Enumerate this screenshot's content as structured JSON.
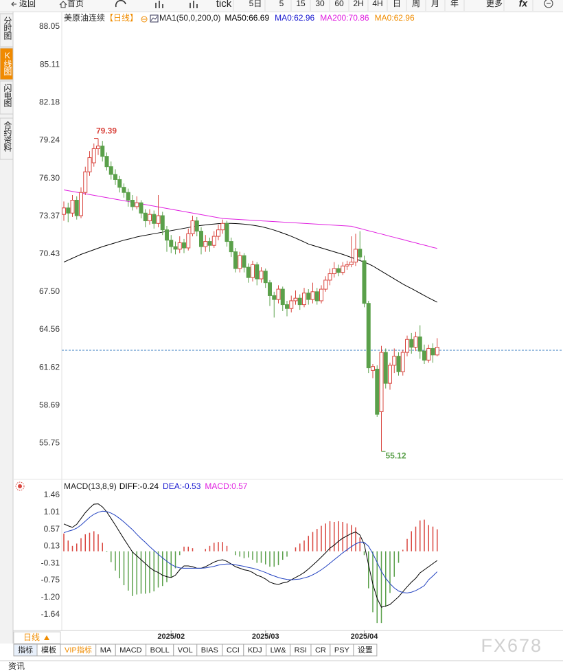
{
  "toolbar": [
    "返回",
    "首页",
    "tick",
    "5日",
    "5",
    "15",
    "30",
    "60",
    "2H",
    "4H",
    "日",
    "周",
    "月",
    "年",
    "更多",
    "fx"
  ],
  "sidebar": [
    "分时图",
    "K线图",
    "闪电图",
    "合约资料"
  ],
  "period_selector": "日线",
  "indicator_tabs": [
    "指标",
    "模板",
    "VIP指标",
    "MA",
    "MACD",
    "BOLL",
    "VOL",
    "BIAS",
    "CCI",
    "KDJ",
    "LW&",
    "RSI",
    "CR",
    "PSY",
    "设置"
  ],
  "footer": "资讯",
  "watermark": "FX678",
  "chart_data": [
    {
      "type": "candlestick",
      "title": "美原油连续",
      "period": "【日线】",
      "indicator": "MA1(50,0,200,0)",
      "legend": [
        {
          "text": "MA50:66.69",
          "color": "#000000"
        },
        {
          "text": "MA0:62.96",
          "color": "#1a1ad0"
        },
        {
          "text": "MA200:70.86",
          "color": "#e020e0"
        },
        {
          "text": "MA0:62.96",
          "color": "#f08c00"
        }
      ],
      "categories": [
        null,
        null,
        null,
        null,
        null,
        null,
        null,
        null,
        null,
        null,
        null,
        null,
        null,
        null,
        null,
        null,
        null,
        null,
        null,
        null,
        null,
        null,
        null,
        null,
        null,
        "2025/02",
        null,
        null,
        null,
        null,
        null,
        null,
        null,
        null,
        null,
        null,
        null,
        null,
        null,
        null,
        null,
        null,
        null,
        null,
        null,
        null,
        null,
        "2025/03",
        null,
        null,
        null,
        null,
        null,
        null,
        null,
        null,
        null,
        null,
        null,
        null,
        null,
        null,
        null,
        null,
        null,
        null,
        null,
        null,
        null,
        null,
        "2025/04",
        null,
        null,
        null,
        null,
        null,
        null,
        null,
        null,
        null,
        null,
        null,
        null,
        null,
        null,
        null,
        null,
        null
      ],
      "ohlc": [
        [
          73.5,
          74.5,
          73.0,
          74.0
        ],
        [
          74.0,
          74.4,
          72.9,
          73.6
        ],
        [
          73.6,
          75.0,
          73.3,
          74.6
        ],
        [
          74.6,
          74.9,
          73.1,
          73.4
        ],
        [
          73.4,
          75.6,
          73.2,
          75.2
        ],
        [
          75.2,
          77.2,
          75.0,
          76.8
        ],
        [
          76.8,
          78.4,
          76.5,
          77.9
        ],
        [
          77.5,
          79.0,
          77.2,
          78.6
        ],
        [
          78.6,
          79.39,
          78.1,
          78.8
        ],
        [
          78.8,
          79.2,
          77.6,
          78.0
        ],
        [
          78.0,
          78.3,
          76.9,
          77.2
        ],
        [
          77.2,
          77.6,
          76.2,
          76.6
        ],
        [
          76.6,
          77.0,
          75.8,
          76.2
        ],
        [
          76.2,
          76.5,
          75.2,
          75.6
        ],
        [
          75.6,
          75.9,
          74.8,
          75.2
        ],
        [
          75.2,
          75.5,
          74.1,
          74.6
        ],
        [
          74.6,
          75.0,
          73.8,
          74.1
        ],
        [
          74.1,
          74.9,
          73.9,
          74.4
        ],
        [
          74.4,
          74.6,
          73.2,
          73.6
        ],
        [
          73.6,
          73.9,
          72.5,
          73.0
        ],
        [
          73.0,
          73.9,
          72.7,
          73.5
        ],
        [
          73.5,
          73.8,
          72.4,
          72.8
        ],
        [
          72.8,
          75.0,
          72.5,
          73.4
        ],
        [
          73.4,
          73.7,
          71.9,
          72.3
        ],
        [
          72.3,
          72.6,
          70.6,
          71.5
        ],
        [
          71.5,
          71.9,
          70.5,
          71.0
        ],
        [
          71.0,
          71.4,
          70.4,
          70.8
        ],
        [
          70.8,
          71.8,
          70.5,
          71.3
        ],
        [
          71.3,
          71.6,
          70.5,
          70.9
        ],
        [
          70.9,
          72.4,
          70.7,
          72.0
        ],
        [
          72.0,
          73.4,
          71.8,
          73.0
        ],
        [
          73.0,
          73.3,
          71.8,
          72.2
        ],
        [
          72.2,
          72.5,
          70.4,
          71.0
        ],
        [
          71.0,
          71.9,
          70.6,
          71.4
        ],
        [
          71.4,
          71.7,
          70.6,
          71.1
        ],
        [
          71.1,
          72.2,
          70.9,
          71.8
        ],
        [
          71.8,
          72.7,
          71.5,
          72.3
        ],
        [
          72.3,
          73.1,
          72.0,
          72.8
        ],
        [
          72.8,
          73.0,
          71.0,
          71.4
        ],
        [
          71.4,
          71.7,
          70.2,
          70.6
        ],
        [
          70.6,
          70.9,
          69.0,
          69.3
        ],
        [
          69.3,
          70.6,
          69.0,
          70.3
        ],
        [
          70.3,
          70.5,
          69.0,
          69.4
        ],
        [
          69.4,
          69.7,
          68.2,
          68.6
        ],
        [
          68.6,
          69.9,
          68.3,
          69.6
        ],
        [
          69.6,
          69.8,
          68.0,
          68.5
        ],
        [
          68.5,
          69.4,
          68.2,
          69.1
        ],
        [
          69.1,
          69.3,
          67.8,
          68.2
        ],
        [
          68.2,
          68.4,
          66.4,
          67.2
        ],
        [
          67.2,
          67.5,
          65.5,
          66.9
        ],
        [
          66.9,
          68.0,
          66.6,
          67.7
        ],
        [
          67.7,
          67.9,
          66.0,
          66.5
        ],
        [
          66.5,
          66.8,
          65.6,
          66.2
        ],
        [
          66.2,
          67.2,
          65.9,
          66.8
        ],
        [
          66.8,
          67.6,
          66.5,
          67.0
        ],
        [
          67.0,
          67.3,
          66.1,
          66.5
        ],
        [
          66.5,
          67.8,
          66.3,
          67.4
        ],
        [
          67.4,
          67.7,
          66.5,
          66.9
        ],
        [
          66.9,
          68.2,
          66.6,
          67.5
        ],
        [
          67.5,
          67.8,
          66.5,
          66.8
        ],
        [
          66.8,
          68.0,
          66.6,
          67.7
        ],
        [
          67.7,
          68.7,
          67.5,
          68.4
        ],
        [
          68.4,
          69.3,
          68.0,
          68.9
        ],
        [
          68.9,
          69.8,
          68.6,
          69.3
        ],
        [
          69.3,
          69.6,
          68.7,
          69.0
        ],
        [
          69.0,
          69.8,
          68.8,
          69.5
        ],
        [
          69.5,
          69.9,
          69.2,
          69.6
        ],
        [
          69.6,
          71.8,
          69.4,
          69.8
        ],
        [
          69.8,
          72.0,
          69.5,
          70.8
        ],
        [
          70.8,
          72.2,
          69.9,
          70.2
        ],
        [
          69.9,
          70.3,
          66.3,
          66.6
        ],
        [
          66.6,
          66.8,
          61.2,
          61.6
        ],
        [
          61.4,
          61.9,
          60.8,
          61.7
        ],
        [
          61.5,
          61.8,
          57.8,
          58.0
        ],
        [
          58.2,
          63.3,
          55.12,
          62.8
        ],
        [
          62.8,
          63.1,
          60.0,
          60.4
        ],
        [
          60.4,
          62.0,
          59.9,
          61.8
        ],
        [
          61.8,
          63.1,
          61.2,
          62.5
        ],
        [
          62.5,
          62.8,
          61.0,
          61.3
        ],
        [
          61.3,
          63.0,
          61.0,
          62.8
        ],
        [
          62.8,
          64.1,
          62.5,
          63.8
        ],
        [
          63.8,
          64.3,
          62.7,
          63.2
        ],
        [
          63.2,
          64.4,
          62.9,
          64.0
        ],
        [
          64.0,
          64.9,
          62.3,
          62.9
        ],
        [
          62.9,
          63.4,
          61.9,
          62.2
        ],
        [
          62.2,
          63.4,
          62.0,
          63.1
        ],
        [
          63.1,
          63.5,
          62.0,
          62.6
        ],
        [
          62.6,
          63.9,
          62.5,
          63.2
        ]
      ],
      "up_color": "#d9453e",
      "down_color": "#5aa04a",
      "series": [
        {
          "color": "#000000",
          "values": [
            69.8,
            69.95,
            70.1,
            70.25,
            70.4,
            70.52,
            70.64,
            70.76,
            70.88,
            71.0,
            71.1,
            71.2,
            71.3,
            71.4,
            71.5,
            71.58,
            71.66,
            71.75,
            71.82,
            71.88,
            71.94,
            72.0,
            72.06,
            72.12,
            72.18,
            72.24,
            72.3,
            72.36,
            72.42,
            72.48,
            72.55,
            72.6,
            72.64,
            72.68,
            72.72,
            72.75,
            72.78,
            72.79,
            72.8,
            72.8,
            72.79,
            72.77,
            72.74,
            72.7,
            72.66,
            72.61,
            72.55,
            72.47,
            72.38,
            72.28,
            72.17,
            72.05,
            71.93,
            71.8,
            71.66,
            71.51,
            71.36,
            71.2,
            71.1,
            71.0,
            70.9,
            70.8,
            70.7,
            70.6,
            70.5,
            70.4,
            70.28,
            70.16,
            70.04,
            69.92,
            69.8,
            69.66,
            69.5,
            69.3,
            69.1,
            68.9,
            68.7,
            68.5,
            68.3,
            68.1,
            67.92,
            67.75,
            67.57,
            67.39,
            67.21,
            67.03,
            66.86,
            66.69
          ]
        },
        {
          "color": "#e020e0",
          "values": [
            75.4,
            75.34,
            75.28,
            75.22,
            75.16,
            75.1,
            75.04,
            74.98,
            74.92,
            74.86,
            74.8,
            74.74,
            74.68,
            74.62,
            74.56,
            74.5,
            74.44,
            74.38,
            74.32,
            74.26,
            74.2,
            74.14,
            74.08,
            74.02,
            73.96,
            73.9,
            73.84,
            73.78,
            73.72,
            73.66,
            73.6,
            73.54,
            73.48,
            73.42,
            73.36,
            73.3,
            73.24,
            73.18,
            73.16,
            73.14,
            73.12,
            73.1,
            73.08,
            73.06,
            73.04,
            73.02,
            73.0,
            72.98,
            72.96,
            72.94,
            72.92,
            72.9,
            72.88,
            72.86,
            72.84,
            72.82,
            72.8,
            72.78,
            72.76,
            72.74,
            72.72,
            72.7,
            72.68,
            72.66,
            72.64,
            72.62,
            72.6,
            72.58,
            72.49,
            72.41,
            72.32,
            72.23,
            72.15,
            72.06,
            71.98,
            71.89,
            71.8,
            71.72,
            71.63,
            71.55,
            71.46,
            71.37,
            71.29,
            71.2,
            71.12,
            71.03,
            70.94,
            70.86
          ]
        }
      ],
      "current_price": 62.96,
      "current_price_color": "#3a7cc0",
      "ylim": [
        52.95,
        89.06
      ],
      "yticks": [
        88.05,
        85.11,
        82.18,
        79.24,
        {
          "value": 76.3,
          "label": "76.30"
        },
        73.37,
        70.43,
        {
          "value": 67.5,
          "label": "67.50"
        },
        64.56,
        61.62,
        58.69,
        55.75
      ]
    },
    {
      "type": "macd",
      "title": "MACD(13,8,9)",
      "legend": [
        {
          "text": "DIFF:-0.24",
          "color": "#000000"
        },
        {
          "text": "DEA:-0.53",
          "color": "#1a1ad0"
        },
        {
          "text": "MACD:0.57",
          "color": "#e020e0"
        }
      ],
      "series": [
        {
          "color": "#000000",
          "values": [
            0.71,
            0.66,
            0.62,
            0.7,
            0.85,
            1.0,
            1.12,
            1.22,
            1.23,
            1.15,
            1.02,
            0.85,
            0.68,
            0.5,
            0.32,
            0.15,
            -0.02,
            -0.12,
            -0.22,
            -0.32,
            -0.42,
            -0.5,
            -0.55,
            -0.62,
            -0.66,
            -0.68,
            -0.62,
            -0.48,
            -0.38,
            -0.38,
            -0.4,
            -0.44,
            -0.44,
            -0.4,
            -0.34,
            -0.28,
            -0.24,
            -0.22,
            -0.26,
            -0.33,
            -0.4,
            -0.44,
            -0.48,
            -0.5,
            -0.55,
            -0.62,
            -0.66,
            -0.72,
            -0.8,
            -0.84,
            -0.86,
            -0.82,
            -0.8,
            -0.74,
            -0.68,
            -0.62,
            -0.55,
            -0.46,
            -0.36,
            -0.26,
            -0.15,
            -0.04,
            0.08,
            0.16,
            0.26,
            0.34,
            0.4,
            0.46,
            0.5,
            0.42,
            0.18,
            -0.35,
            -0.85,
            -1.22,
            -1.45,
            -1.42,
            -1.38,
            -1.28,
            -1.18,
            -1.05,
            -0.92,
            -0.8,
            -0.7,
            -0.56,
            -0.48,
            -0.4,
            -0.32,
            -0.24
          ]
        },
        {
          "color": "#2040c0",
          "values": [
            0.48,
            0.52,
            0.55,
            0.6,
            0.68,
            0.78,
            0.88,
            0.96,
            1.01,
            1.04,
            1.03,
            0.99,
            0.93,
            0.85,
            0.76,
            0.66,
            0.56,
            0.44,
            0.33,
            0.23,
            0.12,
            0.02,
            -0.08,
            -0.17,
            -0.26,
            -0.34,
            -0.4,
            -0.43,
            -0.44,
            -0.44,
            -0.44,
            -0.44,
            -0.44,
            -0.43,
            -0.41,
            -0.39,
            -0.36,
            -0.34,
            -0.33,
            -0.33,
            -0.35,
            -0.37,
            -0.39,
            -0.42,
            -0.44,
            -0.47,
            -0.51,
            -0.55,
            -0.6,
            -0.64,
            -0.68,
            -0.71,
            -0.73,
            -0.74,
            -0.73,
            -0.72,
            -0.69,
            -0.66,
            -0.61,
            -0.55,
            -0.48,
            -0.4,
            -0.31,
            -0.22,
            -0.13,
            -0.04,
            0.04,
            0.12,
            0.19,
            0.24,
            0.23,
            0.13,
            -0.06,
            -0.29,
            -0.52,
            -0.7,
            -0.84,
            -0.95,
            -1.03,
            -1.07,
            -1.08,
            -1.06,
            -1.02,
            -0.96,
            -0.89,
            -0.74,
            -0.64,
            -0.53
          ]
        }
      ],
      "histogram": {
        "up_color": "#d9453e",
        "down_color": "#5aa04a",
        "values": [
          0.46,
          0.28,
          0.14,
          0.2,
          0.34,
          0.44,
          0.48,
          0.52,
          0.44,
          0.22,
          -0.02,
          -0.28,
          -0.5,
          -0.7,
          -0.88,
          -1.02,
          -1.16,
          -1.12,
          -1.1,
          -1.1,
          -1.08,
          -1.04,
          -0.94,
          -0.9,
          -0.8,
          -0.68,
          -0.44,
          -0.1,
          0.12,
          0.12,
          0.08,
          0.0,
          0.0,
          0.06,
          0.14,
          0.22,
          0.24,
          0.24,
          0.14,
          0.0,
          -0.1,
          -0.14,
          -0.18,
          -0.16,
          -0.22,
          -0.3,
          -0.3,
          -0.34,
          -0.4,
          -0.4,
          -0.36,
          -0.22,
          -0.14,
          0.0,
          0.1,
          0.2,
          0.28,
          0.4,
          0.5,
          0.58,
          0.66,
          0.72,
          0.78,
          0.76,
          0.78,
          0.76,
          0.72,
          0.68,
          0.62,
          0.36,
          -0.1,
          -0.96,
          -1.58,
          -1.86,
          -1.86,
          -1.44,
          -1.08,
          -0.66,
          -0.3,
          0.04,
          0.32,
          0.52,
          0.64,
          0.8,
          0.82,
          0.68,
          0.64,
          0.57
        ]
      },
      "ylim": [
        -2.0,
        1.65
      ],
      "yticks": [
        1.46,
        1.01,
        0.57,
        0.13,
        -0.31,
        -0.75,
        {
          "value": -1.2,
          "label": "-1.20"
        },
        -1.64
      ]
    }
  ]
}
